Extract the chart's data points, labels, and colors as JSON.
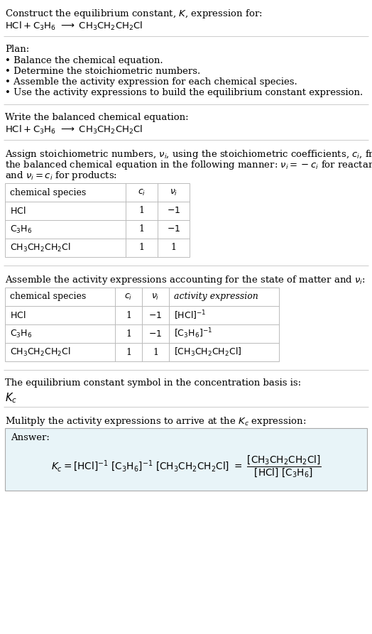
{
  "bg_color": "#ffffff",
  "answer_bg_color": "#e8f4f8",
  "border_color": "#bbbbbb",
  "sep_color": "#cccccc",
  "text_color": "#000000",
  "fs": 9.5,
  "sections": {
    "title1": "Construct the equilibrium constant, $K$, expression for:",
    "title2_plain": "HCl + C",
    "balanced_header": "Write the balanced chemical equation:",
    "stoich_line1": "Assign stoichiometric numbers, $\\nu_i$, using the stoichiometric coefficients, $c_i$, from",
    "stoich_line2": "the balanced chemical equation in the following manner: $\\nu_i = -c_i$ for reactants",
    "stoich_line3": "and $\\nu_i = c_i$ for products:",
    "plan_header": "Plan:",
    "plan1": "\\u2022 Balance the chemical equation.",
    "plan2": "\\u2022 Determine the stoichiometric numbers.",
    "plan3": "\\u2022 Assemble the activity expression for each chemical species.",
    "plan4": "\\u2022 Use the activity expressions to build the equilibrium constant expression.",
    "assemble_text": "Assemble the activity expressions accounting for the state of matter and $\\nu_i$:",
    "kc_text": "The equilibrium constant symbol in the concentration basis is:",
    "multiply_text": "Mulitply the activity expressions to arrive at the $K_c$ expression:",
    "answer_label": "Answer:"
  }
}
